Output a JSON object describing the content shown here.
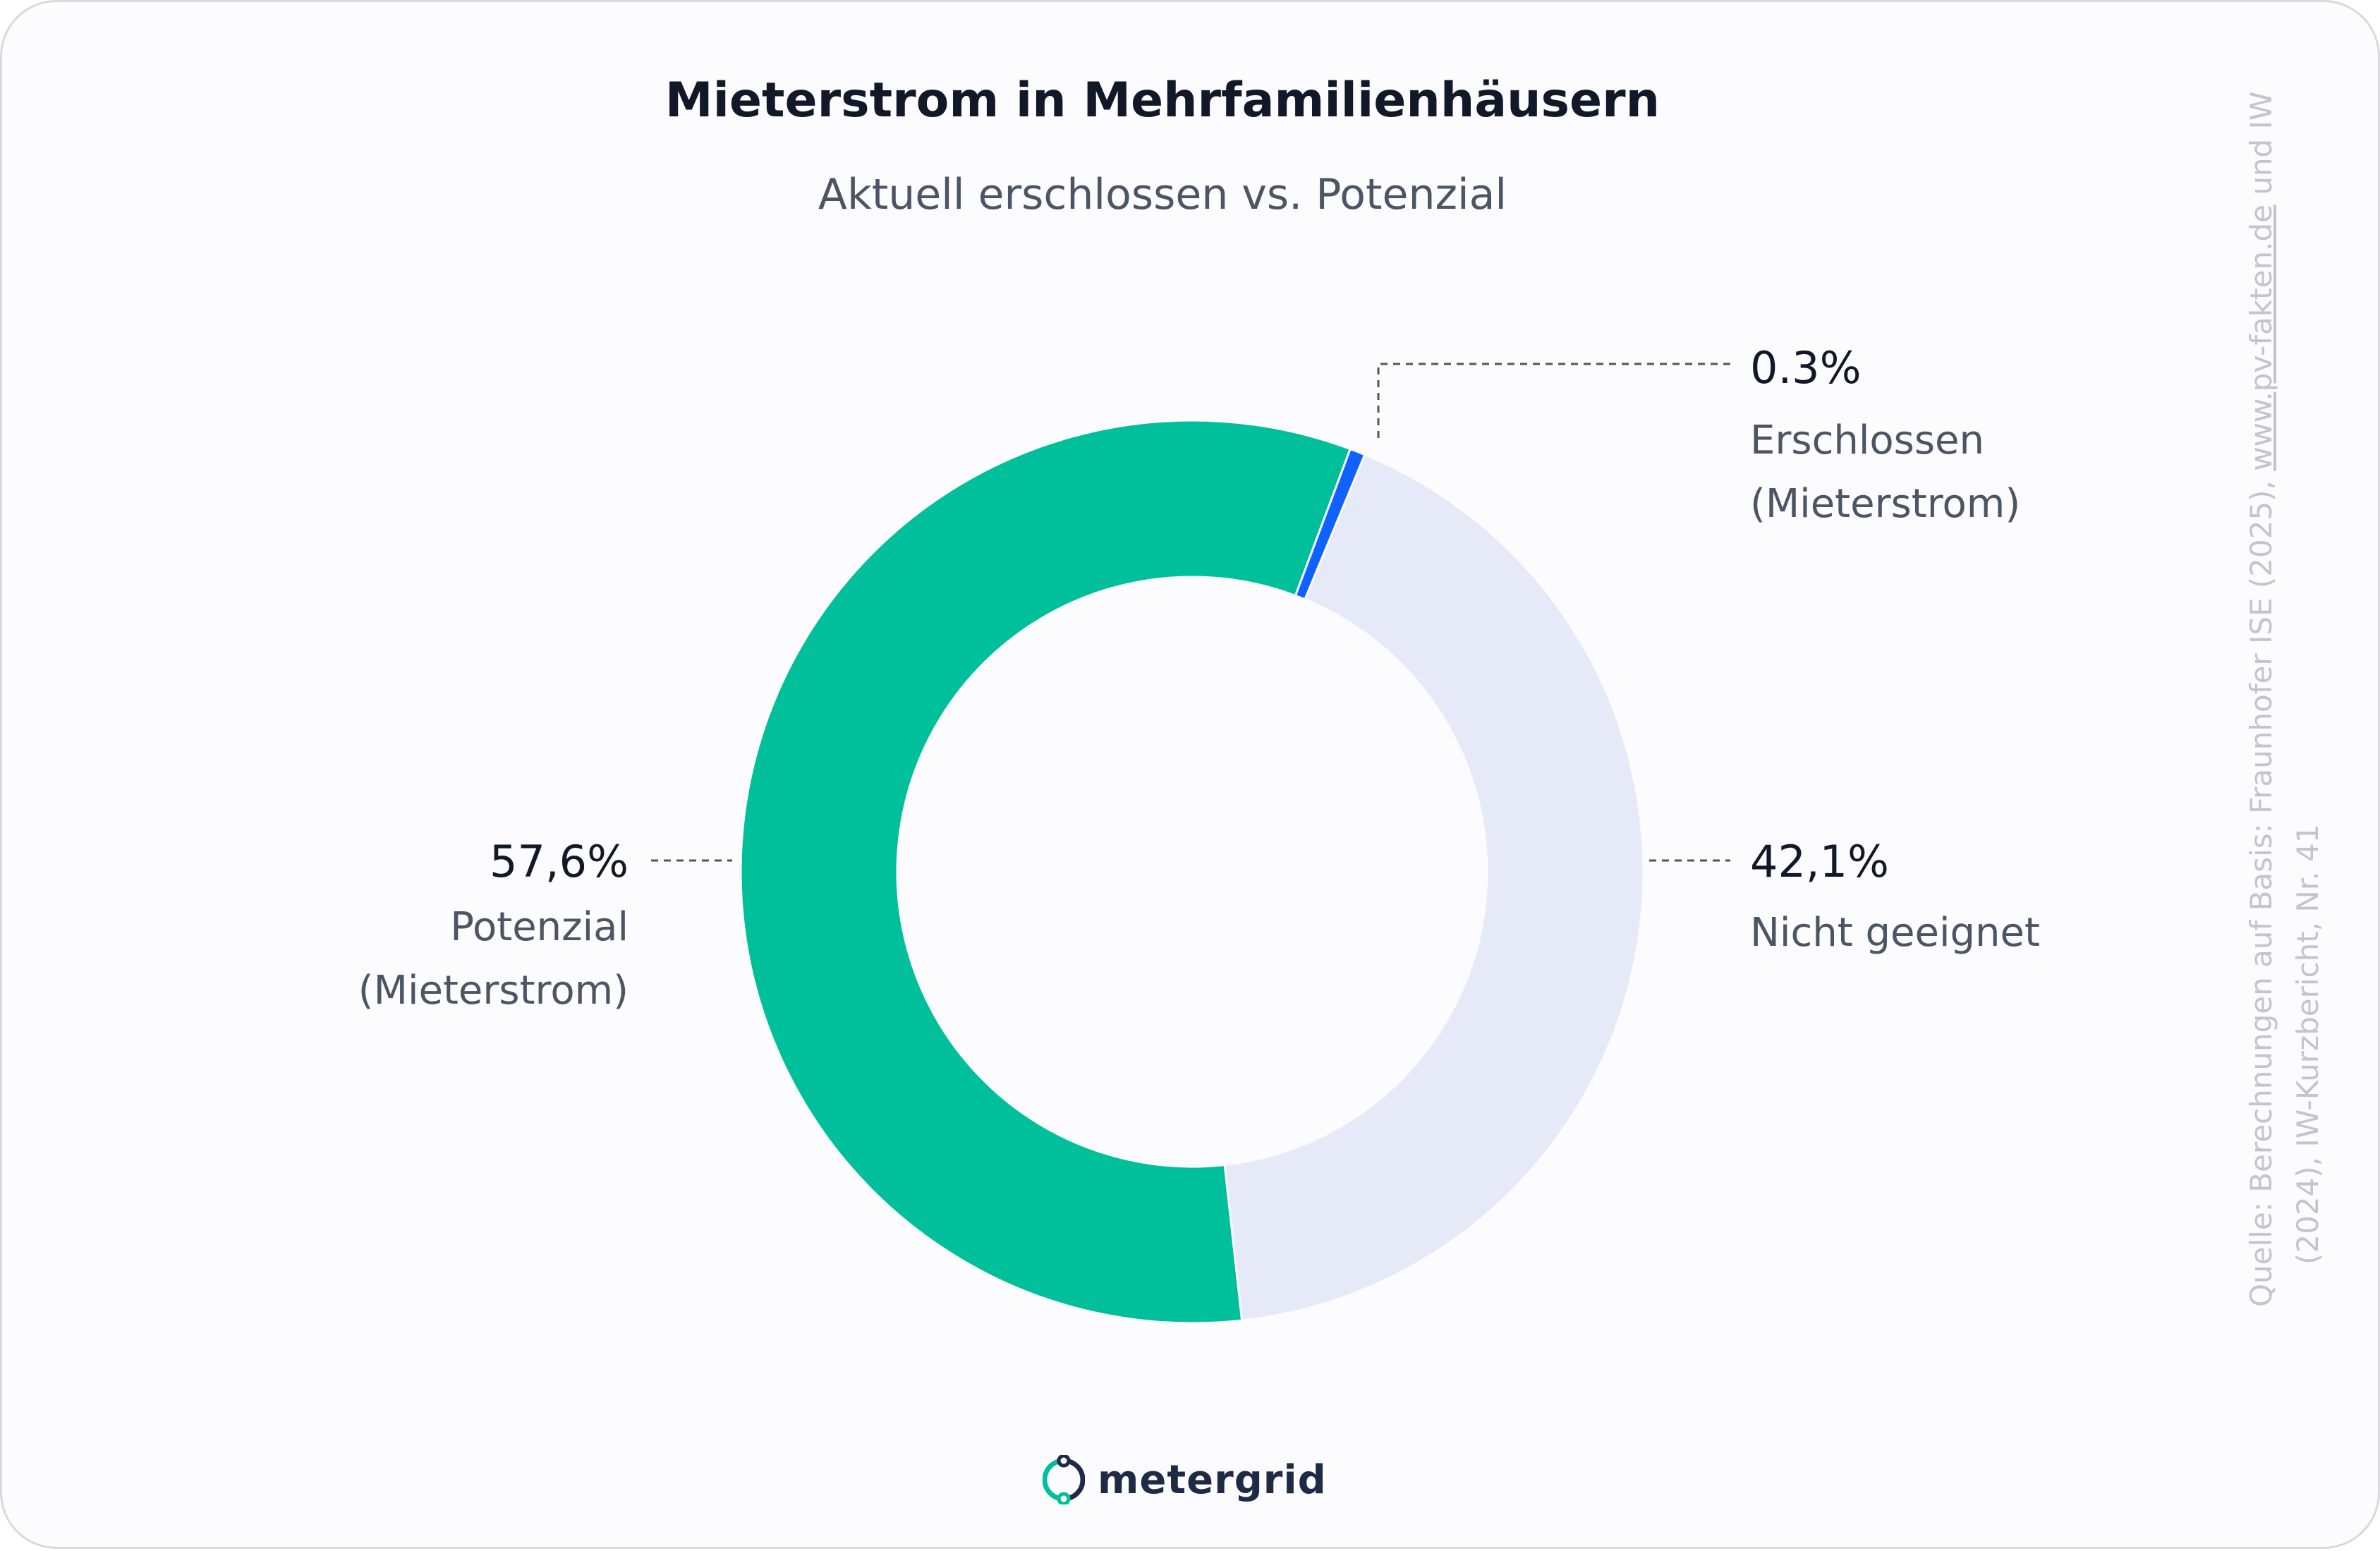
{
  "header": {
    "title": "Mieterstrom in Mehrfamilienhäusern",
    "subtitle": "Aktuell erschlossen vs. Potenzial"
  },
  "chart_data": {
    "type": "pie",
    "variant": "donut",
    "title": "Mieterstrom in Mehrfamilienhäusern",
    "subtitle": "Aktuell erschlossen vs. Potenzial",
    "slices": [
      {
        "name": "Erschlossen (Mieterstrom)",
        "value": 0.3,
        "value_label": "0.3%",
        "label_line1": "Erschlossen",
        "label_line2": "(Mieterstrom)",
        "color": "#0f62fe"
      },
      {
        "name": "Nicht geeignet",
        "value": 42.1,
        "value_label": "42,1%",
        "label_line1": "Nicht geeignet",
        "label_line2": "",
        "color": "#e6e9f7"
      },
      {
        "name": "Potenzial (Mieterstrom)",
        "value": 57.6,
        "value_label": "57,6%",
        "label_line1": "Potenzial",
        "label_line2": "(Mieterstrom)",
        "color": "#00c09b"
      }
    ]
  },
  "source": {
    "line1_prefix": "Quelle: Berechnungen auf Basis: Fraunhofer ISE (2025), ",
    "line1_link": "www.pv-fakten.de",
    "line1_suffix": " und IW",
    "line2": "(2024), IW-Kurzbericht, Nr. 41"
  },
  "logo": {
    "text": "metergrid",
    "icon": "metergrid-logo-icon",
    "color_dark": "#1f2a44",
    "color_accent": "#00c09b"
  }
}
